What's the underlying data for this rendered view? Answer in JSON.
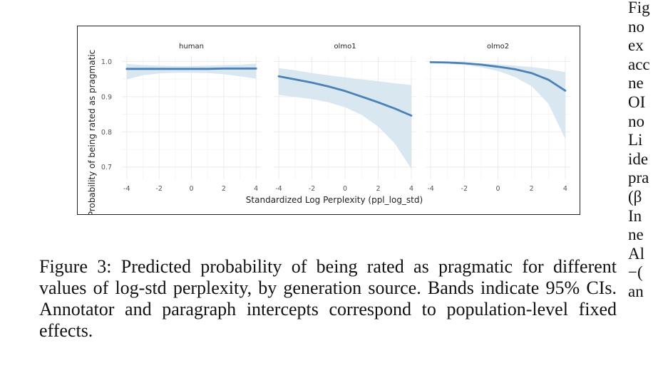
{
  "figure": {
    "caption": "Figure 3: Predicted probability of being rated as pragmatic for different values of log-std perplexity, by generation source. Bands indicate 95% CIs. Annotator and paragraph intercepts correspond to population-level fixed effects."
  },
  "side_text": {
    "lines": [
      "Fig",
      "no",
      "ex",
      "acc",
      "ne",
      "OI",
      "no",
      "Li",
      "ide",
      "pra",
      "(β",
      "In",
      "ne",
      "Al",
      "−(",
      "an"
    ]
  },
  "colors": {
    "line": "#4a82b8",
    "band": "#d5e4f0",
    "grid": "#ebebeb",
    "axis_text": "#555555"
  },
  "chart_data": {
    "type": "line",
    "facets": [
      "human",
      "olmo1",
      "olmo2"
    ],
    "xlabel": "Standardized Log Perplexity (ppl_log_std)",
    "ylabel": "Probability of being rated as pragmatic",
    "xlim": [
      -4.3,
      4.3
    ],
    "ylim": [
      0.665,
      1.015
    ],
    "x_ticks": [
      -4,
      -2,
      0,
      2,
      4
    ],
    "x_tick_labels": [
      "-4",
      "-2",
      "0",
      "2",
      "4"
    ],
    "y_ticks": [
      0.7,
      0.8,
      0.9,
      1.0
    ],
    "y_tick_labels": [
      "0.7",
      "0.8",
      "0.9",
      "1.0"
    ],
    "grid": true,
    "series": [
      {
        "facet": "human",
        "x": [
          -4,
          -3,
          -2,
          -1,
          0,
          1,
          2,
          3,
          4
        ],
        "y": [
          0.979,
          0.979,
          0.979,
          0.979,
          0.979,
          0.979,
          0.98,
          0.98,
          0.98
        ],
        "lower": [
          0.949,
          0.961,
          0.966,
          0.968,
          0.968,
          0.967,
          0.964,
          0.958,
          0.951
        ],
        "upper": [
          0.993,
          0.99,
          0.988,
          0.987,
          0.987,
          0.988,
          0.99,
          0.991,
          0.994
        ]
      },
      {
        "facet": "olmo1",
        "x": [
          -4,
          -3,
          -2,
          -1,
          0,
          1,
          2,
          3,
          4
        ],
        "y": [
          0.958,
          0.949,
          0.94,
          0.929,
          0.916,
          0.9,
          0.884,
          0.866,
          0.846
        ],
        "lower": [
          0.905,
          0.899,
          0.893,
          0.884,
          0.87,
          0.848,
          0.815,
          0.767,
          0.695
        ],
        "upper": [
          0.981,
          0.975,
          0.967,
          0.961,
          0.955,
          0.949,
          0.944,
          0.938,
          0.933
        ]
      },
      {
        "facet": "olmo2",
        "x": [
          -4,
          -3,
          -2,
          -1,
          0,
          1,
          2,
          3,
          4
        ],
        "y": [
          0.998,
          0.997,
          0.995,
          0.991,
          0.985,
          0.978,
          0.967,
          0.948,
          0.917
        ],
        "lower": [
          0.996,
          0.994,
          0.99,
          0.983,
          0.973,
          0.956,
          0.93,
          0.88,
          0.78
        ],
        "upper": [
          0.999,
          0.998,
          0.997,
          0.995,
          0.992,
          0.988,
          0.984,
          0.978,
          0.97
        ]
      }
    ]
  }
}
